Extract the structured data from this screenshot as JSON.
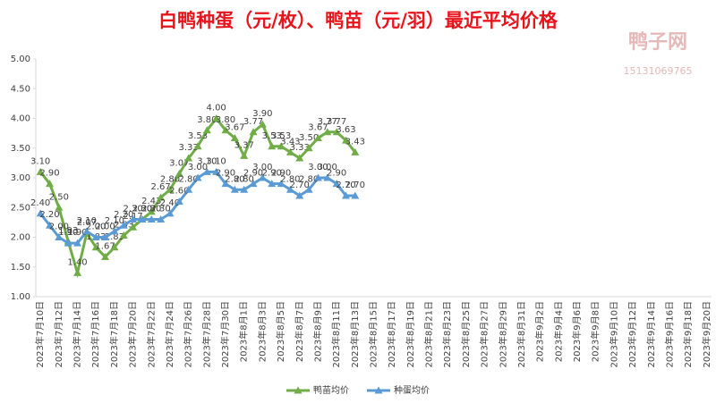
{
  "chart_data": {
    "type": "line",
    "title": "白鸭种蛋（元/枚）、鸭苗（元/羽）最近平均价格",
    "watermark": {
      "name": "鸭子网",
      "phone": "15131069765"
    },
    "categories": [
      "2023年7月10日",
      null,
      "2023年7月12日",
      null,
      "2023年7月14日",
      null,
      "2023年7月16日",
      null,
      "2023年7月18日",
      null,
      "2023年7月20日",
      null,
      "2023年7月22日",
      null,
      "2023年7月24日",
      null,
      "2023年7月26日",
      null,
      "2023年7月28日",
      null,
      "2023年7月30日",
      null,
      "2023年8月1日",
      null,
      "2023年8月3日",
      null,
      "2023年8月5日",
      null,
      "2023年8月7日",
      null,
      "2023年8月9日",
      null,
      "2023年8月11日",
      null,
      "2023年8月13日",
      null,
      "2023年8月15日",
      null,
      "2023年8月17日",
      null,
      "2023年8月19日",
      null,
      "2023年8月21日",
      null,
      "2023年8月23日",
      null,
      "2023年8月25日",
      null,
      "2023年8月27日",
      null,
      "2023年8月29日",
      null,
      "2023年8月31日",
      null,
      "2023年9月2日",
      null,
      "2023年9月4日",
      null,
      "2023年9月6日",
      null,
      "2023年9月8日",
      null,
      "2023年9月10日",
      null,
      "2023年9月12日",
      null,
      "2023年9月14日",
      null,
      "2023年9月16日",
      null,
      "2023年9月18日",
      null,
      "2023年9月20日"
    ],
    "series": [
      {
        "name": "鸭苗均价",
        "color": "#70ad47",
        "values": [
          3.1,
          2.9,
          2.5,
          1.93,
          1.4,
          2.07,
          1.83,
          1.67,
          1.83,
          2.03,
          2.17,
          2.3,
          2.43,
          2.67,
          2.8,
          3.07,
          3.33,
          3.53,
          3.8,
          4,
          3.8,
          3.67,
          3.37,
          3.77,
          3.9,
          3.53,
          3.53,
          3.43,
          3.33,
          3.5,
          3.67,
          3.77,
          3.77,
          3.63,
          3.43,
          null,
          null,
          null,
          null,
          null,
          null,
          null,
          null,
          null,
          null,
          null,
          null,
          null,
          null,
          null,
          null,
          null,
          null,
          null,
          null,
          null,
          null,
          null,
          null,
          null,
          null,
          null,
          null,
          null,
          null,
          null,
          null,
          null,
          null,
          null,
          null,
          null,
          null
        ],
        "value_labels": [
          "3.10",
          "2.90",
          "2.50",
          "1.93",
          "1.40",
          "2.07",
          "1.83",
          "1.67",
          "1.83",
          "2.03",
          "2.17",
          "2.30",
          "2.43",
          "2.67",
          "2.80",
          "3.07",
          "3.33",
          "3.53",
          "3.80",
          "4.00",
          "3.80",
          "3.67",
          "3.37",
          "3.77",
          "3.90",
          "3.53",
          "3.53",
          "3.43",
          "3.33",
          "3.50",
          "3.67",
          "3.77",
          "3.77",
          "3.63",
          "3.43",
          null,
          null,
          null,
          null,
          null,
          null,
          null,
          null,
          null,
          null,
          null,
          null,
          null,
          null,
          null,
          null,
          null,
          null,
          null,
          null,
          null,
          null,
          null,
          null,
          null,
          null,
          null,
          null,
          null,
          null,
          null,
          null,
          null,
          null,
          null,
          null,
          null,
          null
        ]
      },
      {
        "name": "种蛋均价",
        "color": "#5b9bd5",
        "values": [
          2.4,
          2.2,
          2,
          1.9,
          1.9,
          2.1,
          2,
          2,
          2.1,
          2.2,
          2.3,
          2.3,
          2.3,
          2.3,
          2.4,
          2.6,
          2.8,
          3,
          3.1,
          3.1,
          2.9,
          2.8,
          2.8,
          2.9,
          3,
          2.9,
          2.9,
          2.8,
          2.7,
          2.8,
          3,
          3,
          2.9,
          2.7,
          2.7,
          null,
          null,
          null,
          null,
          null,
          null,
          null,
          null,
          null,
          null,
          null,
          null,
          null,
          null,
          null,
          null,
          null,
          null,
          null,
          null,
          null,
          null,
          null,
          null,
          null,
          null,
          null,
          null,
          null,
          null,
          null,
          null,
          null,
          null,
          null,
          null,
          null,
          null
        ],
        "value_labels": [
          "2.40",
          "2.20",
          "2.00",
          "1.90",
          "1.90",
          "2.10",
          "2.00",
          "2.00",
          "2.10",
          "2.20",
          "2.30",
          "2.30",
          "2.30",
          "2.30",
          "2.40",
          "2.60",
          "2.80",
          "3.00",
          "3.10",
          "3.10",
          "2.90",
          "2.80",
          "2.80",
          "2.90",
          "3.00",
          "2.90",
          "2.90",
          "2.80",
          "2.70",
          "2.80",
          "3.00",
          "3.00",
          "2.90",
          "2.70",
          "2.70",
          null,
          null,
          null,
          null,
          null,
          null,
          null,
          null,
          null,
          null,
          null,
          null,
          null,
          null,
          null,
          null,
          null,
          null,
          null,
          null,
          null,
          null,
          null,
          null,
          null,
          null,
          null,
          null,
          null,
          null,
          null,
          null,
          null,
          null,
          null,
          null,
          null,
          null
        ]
      }
    ],
    "ylim": [
      1,
      5
    ],
    "yticks": [
      {
        "value": 1,
        "label": "1.00"
      },
      {
        "value": 1.5,
        "label": "1.50"
      },
      {
        "value": 2,
        "label": "2.00"
      },
      {
        "value": 2.5,
        "label": "2.50"
      },
      {
        "value": 3,
        "label": "3.00"
      },
      {
        "value": 3.5,
        "label": "3.50"
      },
      {
        "value": 4,
        "label": "4.00"
      },
      {
        "value": 4.5,
        "label": "4.50"
      },
      {
        "value": 5,
        "label": "5.00"
      }
    ],
    "grid": false,
    "legend": "bottom"
  }
}
